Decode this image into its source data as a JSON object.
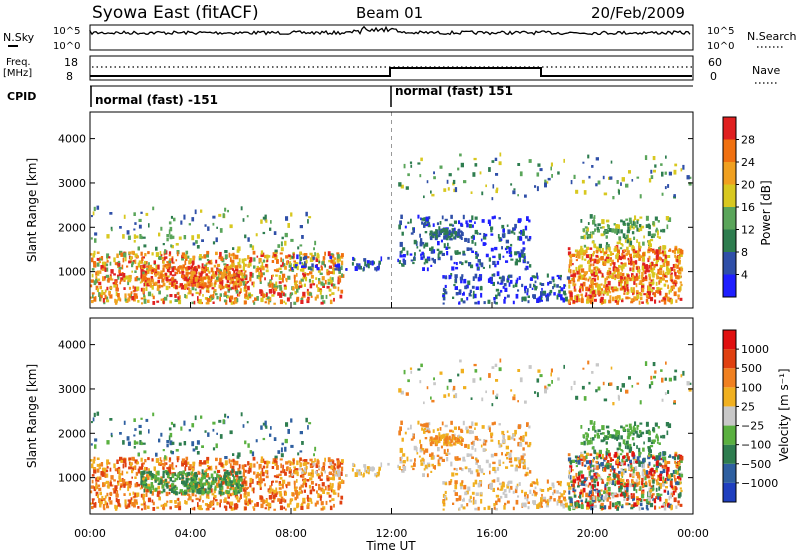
{
  "header": {
    "title": "Syowa East (fitACF)",
    "beam": "Beam 01",
    "date": "20/Feb/2009"
  },
  "top_panels": {
    "nsky_label": "N.Sky",
    "nsearch_label": "N.Search",
    "nsky_ticks": [
      "10^5",
      "10^0"
    ],
    "nsearch_ticks": [
      "10^5",
      "10^0"
    ],
    "freq_label": [
      "Freq.",
      "[MHz]"
    ],
    "freq_ticks": [
      "18",
      "8"
    ],
    "nave_label": "Nave",
    "nave_ticks": [
      "60",
      "0"
    ],
    "cpid_label": "CPID",
    "cpid_segments": [
      "normal (fast) -151",
      "normal (fast) 151"
    ]
  },
  "colors": {
    "power": [
      "#1f1fff",
      "#2f4fa8",
      "#2e7d4f",
      "#5aa55a",
      "#d8c820",
      "#f0a020",
      "#f07010",
      "#e02020"
    ],
    "velocity": [
      "#1f3fbf",
      "#2e5fa0",
      "#2e7d4f",
      "#5ab040",
      "#c8c8c8",
      "#f0b020",
      "#f08020",
      "#e04010",
      "#e01010"
    ]
  },
  "chart_data": [
    {
      "type": "heatmap",
      "panel": "power",
      "x_range": [
        "00:00",
        "24:00"
      ],
      "ylim": [
        180,
        4600
      ],
      "xlabel": "",
      "ylabel": "Slant Range [km]",
      "yticks": [
        "1000",
        "2000",
        "3000",
        "4000"
      ],
      "colorbar": {
        "label": "Power [dB]",
        "ticks": [
          "28",
          "24",
          "20",
          "16",
          "12",
          "8",
          "4"
        ],
        "range": [
          0,
          32
        ]
      },
      "description_features": [
        {
          "time_start": "00:00",
          "time_end": "10:00",
          "range_start": 250,
          "range_end": 1400,
          "power_dB": [
            12,
            24
          ]
        },
        {
          "time_start": "12:00",
          "time_end": "17:30",
          "range_start": 1000,
          "range_end": 2200,
          "power_dB": [
            4,
            12
          ]
        },
        {
          "time_start": "19:00",
          "time_end": "23:30",
          "range_start": 250,
          "range_end": 1500,
          "power_dB": [
            16,
            30
          ]
        }
      ]
    },
    {
      "type": "heatmap",
      "panel": "velocity",
      "x_range": [
        "00:00",
        "24:00"
      ],
      "ylim": [
        180,
        4600
      ],
      "xlabel": "Time UT",
      "ylabel": "Slant Range [km]",
      "yticks": [
        "1000",
        "2000",
        "3000",
        "4000"
      ],
      "xticks": [
        "00:00",
        "04:00",
        "08:00",
        "12:00",
        "16:00",
        "20:00",
        "00:00"
      ],
      "colorbar": {
        "label": "Velocity [m s⁻¹]",
        "ticks": [
          "1000",
          "500",
          "100",
          "25",
          "−25",
          "−100",
          "−500",
          "−1000"
        ]
      }
    }
  ]
}
